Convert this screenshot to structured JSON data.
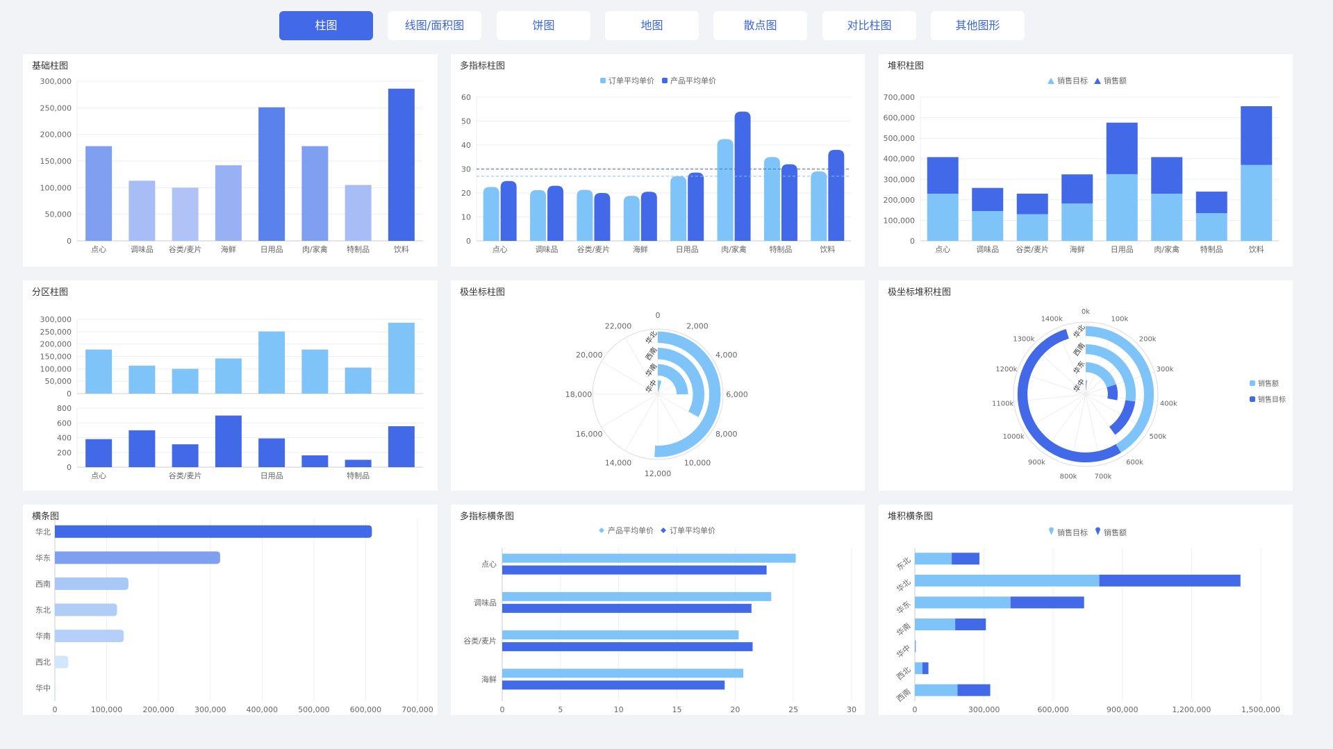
{
  "tabs": [
    "柱图",
    "线图/面积图",
    "饼图",
    "地图",
    "散点图",
    "对比柱图",
    "其他图形"
  ],
  "active_tab": 0,
  "colors": {
    "accent": "#4169e8",
    "light": "#7fc4f9",
    "dark": "#4169e8"
  },
  "panels": {
    "basic_bar": {
      "title": "基础柱图"
    },
    "multi_bar": {
      "title": "多指标柱图"
    },
    "stacked_bar": {
      "title": "堆积柱图"
    },
    "split_bar": {
      "title": "分区柱图"
    },
    "polar_bar": {
      "title": "极坐标柱图"
    },
    "polar_stacked": {
      "title": "极坐标堆积柱图"
    },
    "hbar": {
      "title": "横条图"
    },
    "multi_hbar": {
      "title": "多指标横条图"
    },
    "stacked_hbar": {
      "title": "堆积横条图"
    }
  },
  "chart_data": [
    {
      "id": "basic_bar",
      "type": "bar",
      "title": "基础柱图",
      "categories": [
        "点心",
        "调味品",
        "谷类/麦片",
        "海鲜",
        "日用品",
        "肉/家禽",
        "特制品",
        "饮料"
      ],
      "values": [
        178000,
        113000,
        100000,
        142000,
        251000,
        178000,
        105000,
        286000
      ],
      "ylim": [
        0,
        300000
      ],
      "yticks": [
        "0",
        "50,000",
        "100,000",
        "150,000",
        "200,000",
        "250,000",
        "300,000"
      ],
      "bar_colors": [
        "#7f9ff1",
        "#a8bcf6",
        "#afc3f7",
        "#98b1f4",
        "#5a82ec",
        "#7f9ff1",
        "#a8bcf6",
        "#4169e8"
      ]
    },
    {
      "id": "multi_bar",
      "type": "bar",
      "title": "多指标柱图",
      "categories": [
        "点心",
        "调味品",
        "谷类/麦片",
        "海鲜",
        "日用品",
        "肉/家禽",
        "特制品",
        "饮料"
      ],
      "series": [
        {
          "name": "订单平均单价",
          "values": [
            22.5,
            21.2,
            21.3,
            18.8,
            27,
            42.5,
            35,
            29
          ],
          "color": "#7fc4f9"
        },
        {
          "name": "产品平均单价",
          "values": [
            25,
            23,
            20,
            20.5,
            28.5,
            54,
            32,
            38
          ],
          "color": "#4169e8"
        }
      ],
      "reference_lines": [
        30,
        27
      ],
      "ylim": [
        0,
        60
      ],
      "yticks": [
        "0",
        "10",
        "20",
        "30",
        "40",
        "50",
        "60"
      ]
    },
    {
      "id": "stacked_bar",
      "type": "bar",
      "title": "堆积柱图",
      "categories": [
        "点心",
        "调味品",
        "谷类/麦片",
        "海鲜",
        "日用品",
        "肉/家禽",
        "特制品",
        "饮料"
      ],
      "series": [
        {
          "name": "销售目标",
          "values": [
            230000,
            145000,
            130000,
            182000,
            325000,
            230000,
            135000,
            370000
          ],
          "color": "#7fc4f9"
        },
        {
          "name": "销售额",
          "values": [
            178000,
            113000,
            100000,
            142000,
            251000,
            178000,
            105000,
            286000
          ],
          "color": "#4169e8"
        }
      ],
      "ylim": [
        0,
        700000
      ],
      "yticks": [
        "0",
        "100,000",
        "200,000",
        "300,000",
        "400,000",
        "500,000",
        "600,000",
        "700,000"
      ]
    },
    {
      "id": "split_bar",
      "type": "bar",
      "title": "分区柱图",
      "categories": [
        "点心",
        "调味品",
        "谷类/麦片",
        "海鲜",
        "日用品",
        "肉/家禽",
        "特制品",
        "饮料"
      ],
      "xtick_labels": [
        "点心",
        "",
        "谷类/麦片",
        "",
        "日用品",
        "",
        "特制品",
        ""
      ],
      "top": {
        "values": [
          178000,
          113000,
          100000,
          142000,
          251000,
          178000,
          105000,
          286000
        ],
        "ylim": [
          0,
          300000
        ],
        "yticks": [
          "0",
          "50,000",
          "100,000",
          "150,000",
          "200,000",
          "250,000",
          "300,000"
        ],
        "color": "#7fc4f9"
      },
      "bottom": {
        "values": [
          380,
          500,
          310,
          700,
          390,
          160,
          100,
          555
        ],
        "ylim": [
          0,
          800
        ],
        "yticks": [
          "0",
          "200",
          "400",
          "600",
          "800"
        ],
        "color": "#4169e8"
      }
    },
    {
      "id": "polar_bar",
      "type": "bar",
      "title": "极坐标柱图",
      "categories": [
        "华北",
        "西南",
        "华南",
        "华中"
      ],
      "values": [
        12200,
        7950,
        6000,
        1000
      ],
      "axis_max": 24000,
      "angle_ticks": [
        "0",
        "2,000",
        "4,000",
        "6,000",
        "8,000",
        "10,000",
        "12,000",
        "14,000",
        "16,000",
        "18,000",
        "20,000",
        "22,000"
      ],
      "color": "#7fc4f9"
    },
    {
      "id": "polar_stacked",
      "type": "bar",
      "title": "极坐标堆积柱图",
      "categories": [
        "华北",
        "西南",
        "华东",
        "华中"
      ],
      "series": [
        {
          "name": "销售额",
          "values": [
            620,
            410,
            300,
            10
          ],
          "color": "#7fc4f9"
        },
        {
          "name": "销售目标",
          "values": [
            810,
            190,
            120,
            10
          ],
          "color": "#4169e8"
        }
      ],
      "axis_max": 1500,
      "angle_ticks": [
        "0k",
        "100k",
        "200k",
        "300k",
        "400k",
        "500k",
        "600k",
        "700k",
        "800k",
        "900k",
        "1000k",
        "1100k",
        "1200k",
        "1300k",
        "1400k"
      ],
      "legend": "right"
    },
    {
      "id": "hbar",
      "type": "bar",
      "title": "横条图",
      "categories": [
        "华北",
        "华东",
        "西南",
        "东北",
        "华南",
        "西北",
        "华中"
      ],
      "values": [
        612000,
        319000,
        142000,
        120000,
        133000,
        26000,
        2000
      ],
      "xlim": [
        0,
        700000
      ],
      "xticks": [
        "0",
        "100,000",
        "200,000",
        "300,000",
        "400,000",
        "500,000",
        "600,000",
        "700,000"
      ],
      "bar_colors": [
        "#4169e8",
        "#7f9ff1",
        "#a8c8f8",
        "#b0cdf8",
        "#b5d0f8",
        "#d3e7fc",
        "#dcedfd"
      ]
    },
    {
      "id": "multi_hbar",
      "type": "bar",
      "title": "多指标横条图",
      "categories": [
        "点心",
        "调味品",
        "谷类/麦片",
        "海鲜"
      ],
      "series": [
        {
          "name": "产品平均单价",
          "values": [
            25.2,
            23.1,
            20.3,
            20.7
          ],
          "color": "#7fc4f9"
        },
        {
          "name": "订单平均单价",
          "values": [
            22.7,
            21.4,
            21.5,
            19.1
          ],
          "color": "#4169e8"
        }
      ],
      "xlim": [
        0,
        30
      ],
      "xticks": [
        "0",
        "5",
        "10",
        "15",
        "20",
        "25",
        "30"
      ]
    },
    {
      "id": "stacked_hbar",
      "type": "bar",
      "title": "堆积横条图",
      "categories": [
        "东北",
        "华北",
        "华东",
        "华南",
        "华中",
        "西北",
        "西南"
      ],
      "series": [
        {
          "name": "销售目标",
          "values": [
            160000,
            800000,
            415000,
            175000,
            2000,
            33000,
            185000
          ],
          "color": "#7fc4f9"
        },
        {
          "name": "销售额",
          "values": [
            120000,
            612000,
            319000,
            133000,
            2000,
            26000,
            142000
          ],
          "color": "#4169e8"
        }
      ],
      "xlim": [
        0,
        1500000
      ],
      "xticks": [
        "0",
        "300,000",
        "600,000",
        "900,000",
        "1,200,000",
        "1,500,000"
      ]
    }
  ]
}
